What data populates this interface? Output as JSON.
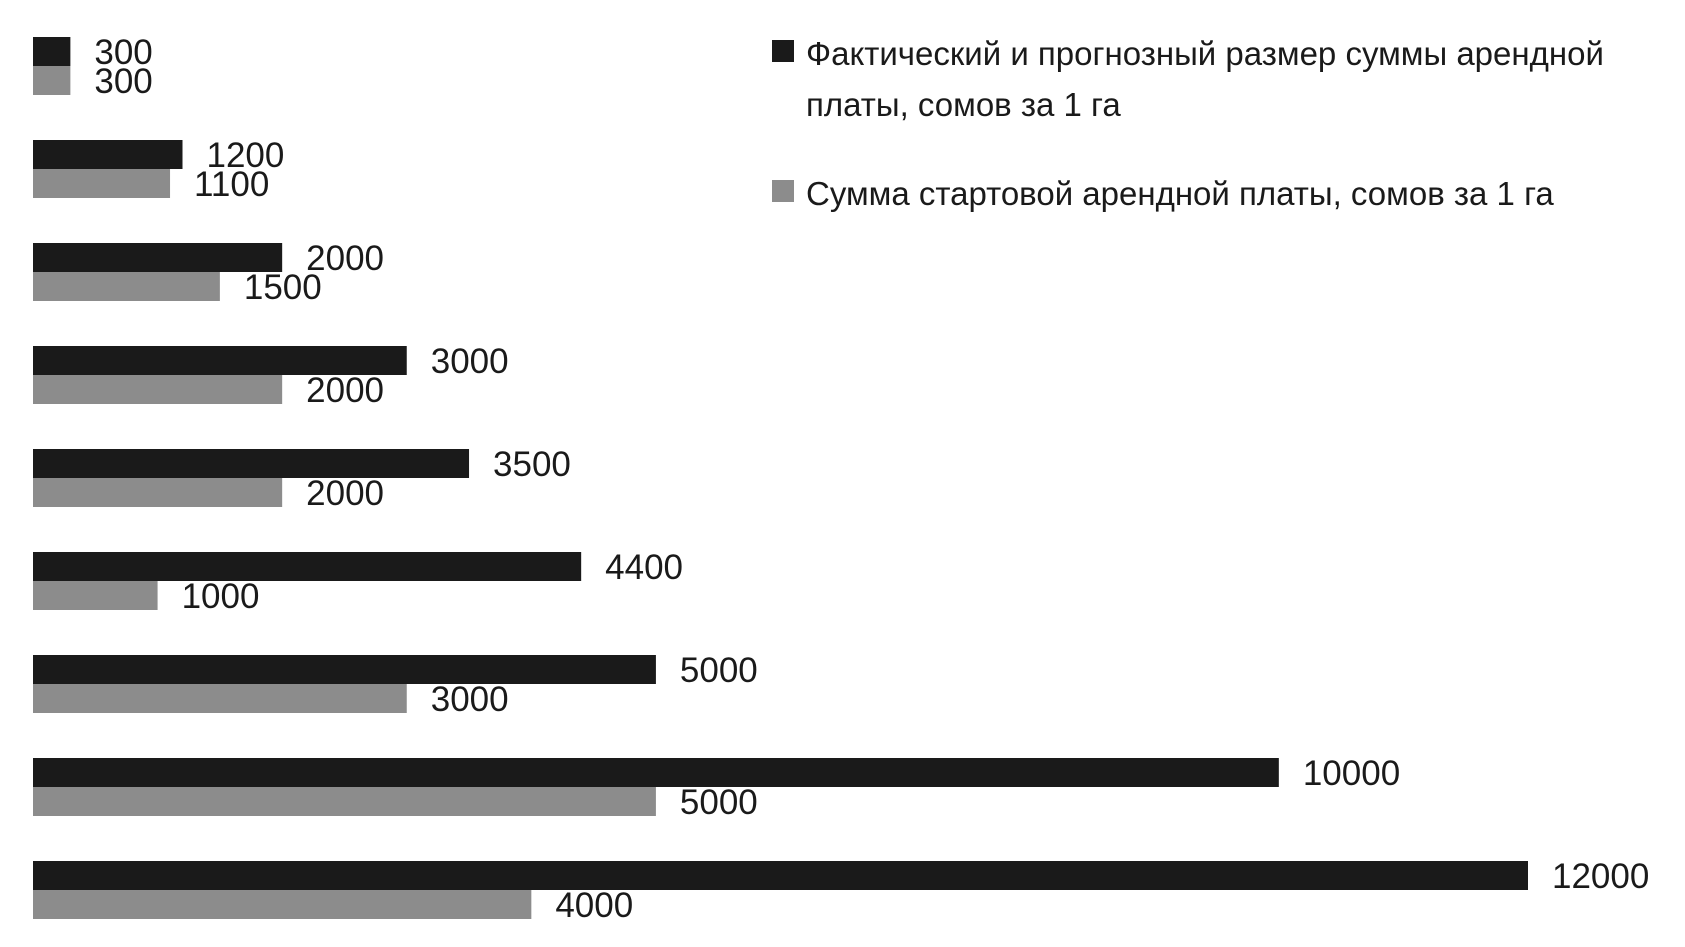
{
  "chart_data": {
    "type": "bar",
    "orientation": "horizontal",
    "title": "",
    "xlabel": "",
    "ylabel": "",
    "grid": false,
    "legend_position": "top-right",
    "categories": [
      "",
      "",
      "",
      "",
      "",
      "",
      "",
      "",
      ""
    ],
    "series": [
      {
        "name": "Фактический и прогнозный размер суммы арендной платы, сомов за 1 га",
        "color": "#1a1a1a",
        "values": [
          300,
          1200,
          2000,
          3000,
          3500,
          4400,
          5000,
          10000,
          12000
        ]
      },
      {
        "name": "Сумма стартовой арендной платы, сомов за 1 га",
        "color": "#8c8c8c",
        "values": [
          300,
          1100,
          1500,
          2000,
          2000,
          1000,
          3000,
          5000,
          4000
        ]
      }
    ],
    "xlim": [
      0,
      12000
    ]
  }
}
